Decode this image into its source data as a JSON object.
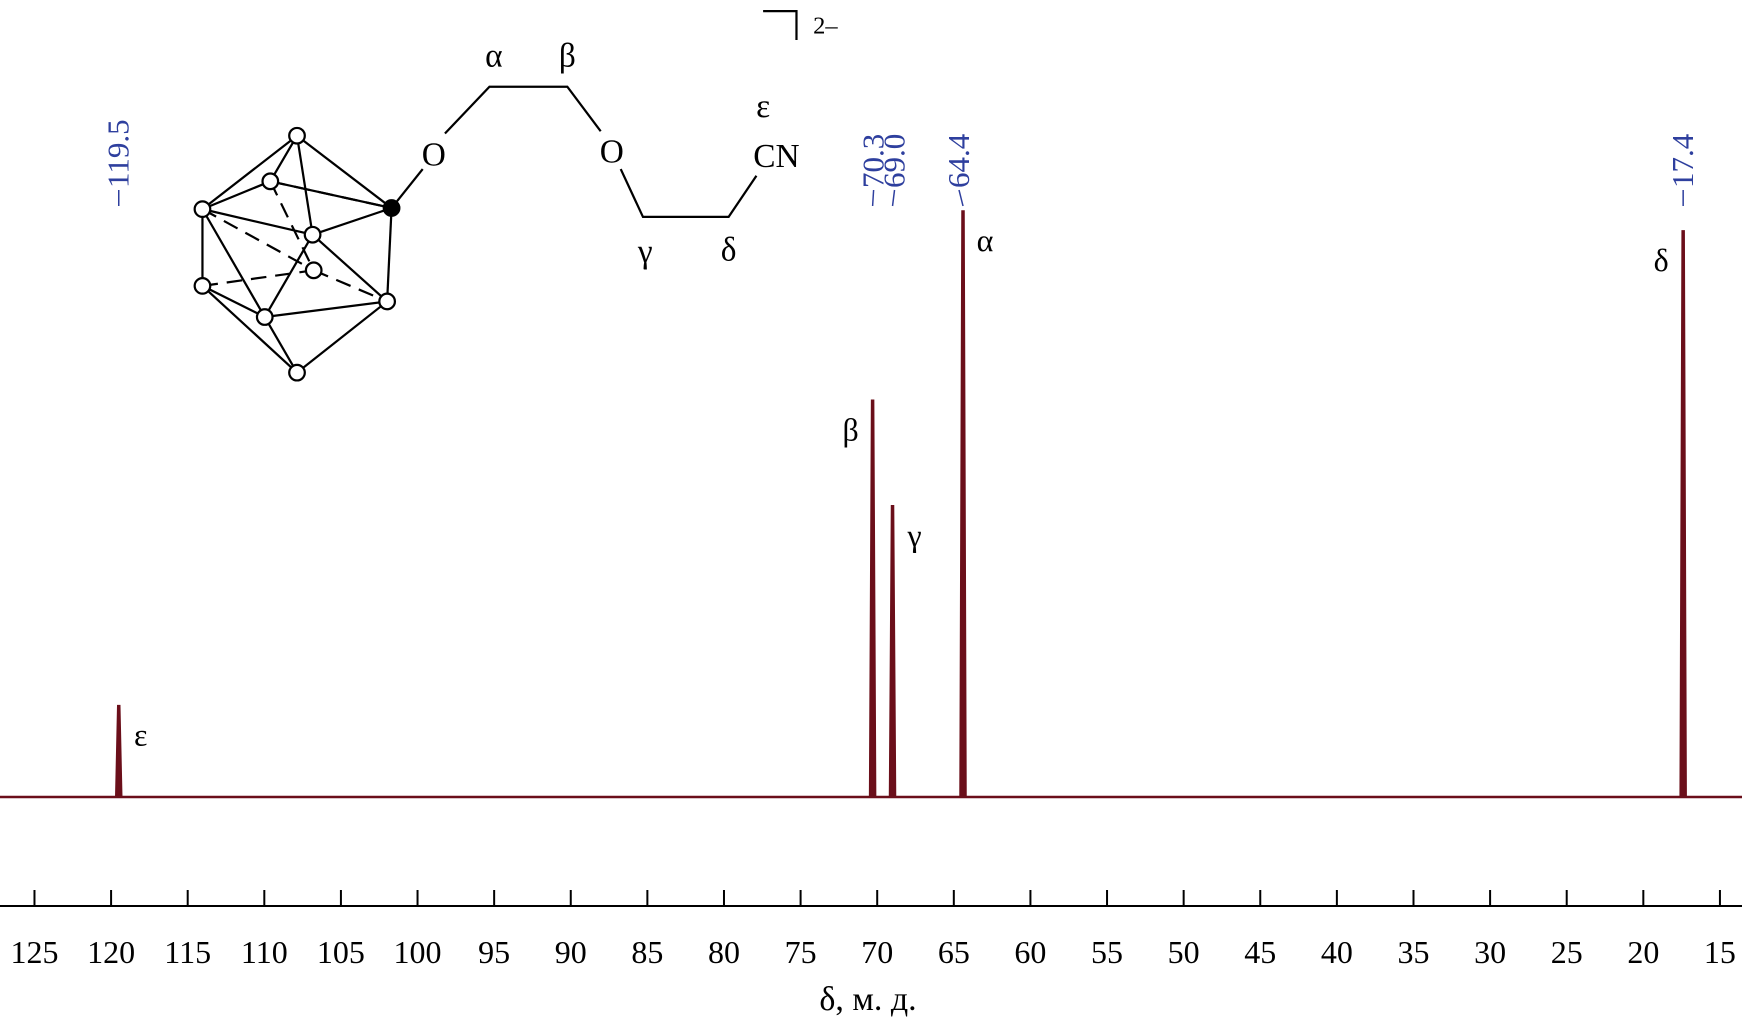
{
  "chart_data": {
    "type": "spectrum",
    "xlabel": "δ, м. д.",
    "x": [
      119.5,
      70.3,
      69.0,
      64.4,
      17.4
    ],
    "values": [
      15.6,
      67.7,
      49.7,
      100,
      96.6
    ],
    "peak_labels": [
      "119.5",
      "70.3",
      "69.0",
      "64.4",
      "17.4"
    ],
    "assignments": [
      "ε",
      "β",
      "γ",
      "α",
      "δ"
    ],
    "color": "#6b0f1a",
    "label_color": "#2e3f9e",
    "xlim": [
      127.25,
      13.56
    ],
    "ylim": [
      0,
      100
    ],
    "xticks": [
      125,
      120,
      115,
      110,
      105,
      100,
      95,
      90,
      85,
      80,
      75,
      70,
      65,
      60,
      55,
      50,
      45,
      40,
      35,
      30,
      25,
      20,
      15
    ]
  },
  "structure": {
    "labels": {
      "alpha": "α",
      "beta": "β",
      "oxygen_1": "O",
      "oxygen_2": "O",
      "epsilon": "ε",
      "nitrile": "CN",
      "gamma": "γ",
      "delta": "δ",
      "charge": "2–"
    }
  }
}
